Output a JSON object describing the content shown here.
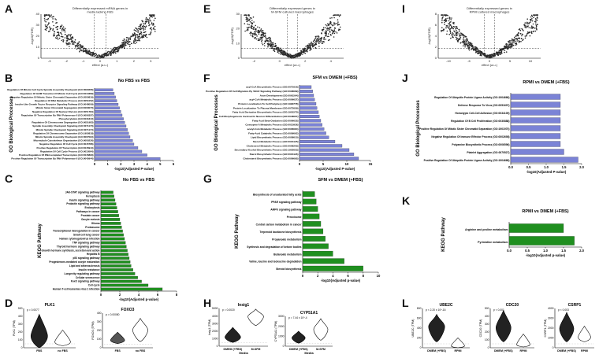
{
  "panel_labels": {
    "A": "A",
    "B": "B",
    "C": "C",
    "D": "D",
    "E": "E",
    "F": "F",
    "G": "G",
    "H": "H",
    "I": "I",
    "J": "J",
    "K": "K",
    "L": "L"
  },
  "volcano": [
    {
      "title_lines": [
        "Differentially expressed mRNA genes in",
        "media lacking FBS"
      ],
      "xlabel": "effect (a.u.)",
      "ylabel": "-log10(FDR)",
      "xticks": [
        "-3",
        "-2",
        "-1",
        "0",
        "1",
        "2",
        "3"
      ],
      "yticks": [
        "0",
        "10",
        "20",
        "30",
        "40"
      ]
    },
    {
      "title_lines": [
        "Differentially expressed genes in",
        "M-SFM cultured macrophages"
      ],
      "xlabel": "effect (a.u.)",
      "ylabel": "-log10(FDR)",
      "xticks": [
        "-2",
        "0",
        "2",
        "4"
      ],
      "yticks": [
        "0",
        "10",
        "20",
        "30"
      ]
    },
    {
      "title_lines": [
        "Differentially expressed genes in",
        "RPMI cultured macrophages"
      ],
      "xlabel": "effect (a.u.)",
      "ylabel": "-log10(FDR)",
      "xticks": [
        "-10",
        "-5",
        "0",
        "5",
        "10"
      ],
      "yticks": [
        "0",
        "2",
        "4",
        "6",
        "8"
      ]
    }
  ],
  "chart_data": [
    {
      "id": "B",
      "type": "bar",
      "orientation": "horizontal",
      "title": "No FBS vs FBS",
      "ylabel": "GO Biological Processes",
      "xlabel": "-log10(Adjusted P-value)",
      "color": "#7b83d6",
      "xlim": [
        0,
        6
      ],
      "xticks": [
        "0",
        "1",
        "2",
        "3",
        "4",
        "5",
        "6"
      ],
      "categories": [
        "Regulation Of Mitotic Cell Cycle Spindle Assembly Checkpoint (GO:0090266)",
        "Regulation Of G2/M Transition Of Mitotic Cell Cycle (GO:0010389)",
        "Negative Regulation Of Mitotic Sister Chromatid Separation (GO:2000816)",
        "Regulation Of DNA Metabolic Process (GO:0051052)",
        "Insulin-Like Growth Factor Receptor Signaling Pathway (GO:0048009)",
        "Mitotic Sister Chromatid Segregation (GO:0000070)",
        "Negative Regulation Of Nuclear Division (GO:0051784)",
        "Regulation Of Transcription By RNA Polymerase II (GO:0006357)",
        "Phosphorylation (GO:0016310)",
        "Regulation Of Chromosome Segregation (GO:0051983)",
        "Spindle Assembly Checkpoint Signaling (GO:0071173)",
        "Mitotic Spindle Checkpoint Signaling (GO:0071174)",
        "Regulation Of Chromosome Separation (GO:1905818)",
        "Mitotic Spindle Assembly Checkpoint (GO:0007094)",
        "Microtubule Cytoskeleton Organization (GO:0000226)",
        "Negative Regulation Of Cell Cycle (GO:0045786)",
        "Positive Regulation Of Transcription (GO:0045944)",
        "Regulation Of Cell Cycle Process (GO:0010564)",
        "Positive Regulation Of DNA-templated Transcription (GO:0045893)",
        "Positive Regulation Of Transcription By RNA Polymerase II (GO:0045944)"
      ],
      "values": [
        1.4,
        1.5,
        1.6,
        1.7,
        1.8,
        1.9,
        2.0,
        2.1,
        2.2,
        2.3,
        2.4,
        2.5,
        2.6,
        2.7,
        2.9,
        3.0,
        3.3,
        3.6,
        4.0,
        5.0
      ]
    },
    {
      "id": "C",
      "type": "bar",
      "orientation": "horizontal",
      "title": "No FBS vs FBS",
      "ylabel": "KEGG Pathway",
      "xlabel": "-log10(Adjusted p-value)",
      "color": "#1f8f1f",
      "xlim": [
        0,
        8
      ],
      "xticks": [
        "0",
        "2",
        "4",
        "6",
        "8"
      ],
      "categories": [
        "JAK-STAT signaling pathway",
        "Ferroptosis",
        "Insulin signaling pathway",
        "Prolactin signaling pathway",
        "Endocytosis",
        "Pathways in cancer",
        "Prostate cancer",
        "Oocyte meiosis",
        "Glioma",
        "Proteasome",
        "Transcriptional misregulation in cancer",
        "Small cell lung cancer",
        "Human cytomegalovirus infection",
        "TNF signaling pathway",
        "Thyroid hormone signaling pathway",
        "Growth hormone synthesis, secretion and action",
        "Hepatitis B",
        "p53 signaling pathway",
        "Progesterone-mediated oocyte maturation",
        "Lipid and atherosclerosis",
        "Insulin resistance",
        "Longevity regulating pathway",
        "Cellular senescence",
        "FoxO signaling pathway",
        "Cell cycle",
        "Human T-cell leukemia virus 1 infection"
      ],
      "values": [
        1.3,
        1.4,
        1.5,
        1.6,
        1.7,
        1.8,
        1.9,
        2.0,
        2.1,
        2.2,
        2.3,
        2.4,
        2.5,
        2.6,
        2.7,
        2.8,
        2.9,
        3.0,
        3.1,
        3.2,
        3.4,
        3.6,
        3.9,
        4.3,
        5.0,
        6.5
      ]
    },
    {
      "id": "F",
      "type": "bar",
      "orientation": "horizontal",
      "title": "SFM vs DMEM (+FBS)",
      "ylabel": "GO Biological Processes",
      "xlabel": "-log10(Adjusted P-value)",
      "color": "#7b83d6",
      "xlim": [
        0,
        15
      ],
      "xticks": [
        "0",
        "5",
        "10",
        "15"
      ],
      "categories": [
        "acyl-CoA Biosynthetic Process (GO:0071616)",
        "Positive Regulation Of Cell Migration By VEGF Signaling Pathway (GO:0038089)",
        "Axon Development (GO:0061564)",
        "acyl-CoA Metabolic Process (GO:0006637)",
        "Protein Localization To Cell Periphery (GO:1990778)",
        "Protein Localization To Plasma Membrane (GO:0072659)",
        "Fatty Acid Derivative Biosynthetic Process (GO:1901570)",
        "Cell Morphogenesis Involved In Neuron Differentiation (GO:0048667)",
        "Fatty Acid Beta-Oxidation (GO:0006635)",
        "Coenzyme A Metabolic Process (GO:0015936)",
        "acetyl-CoA Metabolic Process (GO:0006084)",
        "Fatty Acid Catabolic Process (GO:0009062)",
        "Lipid Biosynthetic Process (GO:0008610)",
        "Sterol Metabolic Process (GO:0016125)",
        "Cholesterol Metabolic Process (GO:0008203)",
        "Secondary Alcohol Biosynthetic Process (GO:1902653)",
        "Sterol Biosynthetic Process (GO:0016126)",
        "Cholesterol Biosynthetic Process (GO:0006695)"
      ],
      "values": [
        2.5,
        2.8,
        3.0,
        3.2,
        3.5,
        3.7,
        4.0,
        4.2,
        4.5,
        4.8,
        5.2,
        5.6,
        6.2,
        7.5,
        9.0,
        10.5,
        11.5,
        12.5
      ]
    },
    {
      "id": "G",
      "type": "bar",
      "orientation": "horizontal",
      "title": "SFM vs DMEM (+FBS)",
      "ylabel": "KEGG Pathway",
      "xlabel": "-log10(Adjusted p-value)",
      "color": "#1f8f1f",
      "xlim": [
        0,
        10
      ],
      "xticks": [
        "0",
        "2",
        "4",
        "6",
        "8",
        "10"
      ],
      "categories": [
        "Biosynthesis of unsaturated fatty acids",
        "PPAR signaling pathway",
        "AMPK signaling pathway",
        "Peroxisome",
        "Central carbon metabolism in cancer",
        "Terpenoid backbone biosynthesis",
        "Propanoate metabolism",
        "Synthesis and degradation of ketone bodies",
        "Butanoate metabolism",
        "Valine, leucine and isoleucine degradation",
        "Steroid biosynthesis"
      ],
      "values": [
        1.6,
        1.8,
        2.0,
        2.2,
        2.4,
        2.7,
        3.0,
        3.4,
        4.0,
        5.5,
        8.0
      ]
    },
    {
      "id": "J",
      "type": "bar",
      "orientation": "horizontal",
      "title": "RPMI vs DMEM (+FBS)",
      "ylabel": "GO Biological Processes",
      "xlabel": "-log10(Adjusted P-value)",
      "color": "#7b83d6",
      "xlim": [
        0,
        2.0
      ],
      "xticks": [
        "0.0",
        "0.5",
        "1.0",
        "1.5",
        "2.0"
      ],
      "categories": [
        "Regulation Of Ubiquitin Protein Ligase Activity (GO:1904666)",
        "Defense Response To Virus (GO:0051607)",
        "Homotypic Cell-Cell Adhesion (GO:0034109)",
        "Regulation Of B Cell Proliferation (GO:0030888)",
        "Positive Regulation Of Mitotic Sister Chromatid Separation (GO:1901970)",
        "Negative Regulation Of Immune Effector Process (GO:0002698)",
        "Polyamine Biosynthetic Process (GO:0006596)",
        "Platelet Aggregation (GO:0070527)",
        "Positive Regulation Of Ubiquitin Protein Ligase Activity (GO:1904668)"
      ],
      "values": [
        1.4,
        1.4,
        1.4,
        1.4,
        1.4,
        1.4,
        1.4,
        1.5,
        1.9
      ]
    },
    {
      "id": "K",
      "type": "bar",
      "orientation": "horizontal",
      "title": "RPMI vs DMEM (+FBS)",
      "ylabel": "KEGG Pathway",
      "xlabel": "-log10(Adjusted p-value)",
      "color": "#1f8f1f",
      "xlim": [
        0,
        2.0
      ],
      "xticks": [
        "0.0",
        "0.5",
        "1.0",
        "1.5",
        "2.0"
      ],
      "categories": [
        "Arginine and proline metabolism",
        "Pyrimidine metabolism"
      ],
      "values": [
        1.5,
        1.8
      ]
    }
  ],
  "violins": [
    {
      "id": "D1",
      "title": "PLK1",
      "ylabel": "PLK1 (TPM)",
      "pval": "p = 0.0077",
      "yticks": [
        "0",
        "100",
        "200",
        "300",
        "400",
        "500"
      ],
      "groups": [
        "FBS",
        "no FBS"
      ],
      "fill": "#222222"
    },
    {
      "id": "D2",
      "title": "FOXO3",
      "ylabel": "FOXO3 (TPM)",
      "pval": "p = 0.00080",
      "yticks": [
        "0",
        "100",
        "200",
        "300",
        "400"
      ],
      "groups": [
        "FBS",
        "no FBS"
      ],
      "fill": "#555555"
    },
    {
      "id": "H1",
      "title": "Insig1",
      "ylabel": "Insig1 (TPM)",
      "pval": "p = 0.0020",
      "yticks": [
        "0",
        "1000",
        "2000",
        "3000",
        "4000",
        "5000"
      ],
      "groups": [
        "DMEM (+FBS)",
        "M-SFM"
      ],
      "xlabel": "Media",
      "fill": "#222222"
    },
    {
      "id": "H2",
      "title": "CYP51A1",
      "ylabel": "CYP51A1 (TPM)",
      "pval": "p = 7.44 x 10^-4",
      "yticks": [
        "0",
        "1000",
        "2000",
        "3000"
      ],
      "groups": [
        "DMEM (+FBS)",
        "M-SFM"
      ],
      "xlabel": "Media",
      "fill": "#222222"
    },
    {
      "id": "L1",
      "title": "UBE2C",
      "ylabel": "UBE2C (TPM)",
      "pval": "p < 2.20 x 10^-16",
      "yticks": [
        "0",
        "200",
        "400",
        "600",
        "800"
      ],
      "groups": [
        "DMEM (+FBS)",
        "RPMI"
      ],
      "fill": "#222222"
    },
    {
      "id": "L2",
      "title": "CDC20",
      "ylabel": "CDC20 (TPM)",
      "pval": "p < 0.001",
      "yticks": [
        "0",
        "100",
        "200",
        "300",
        "400",
        "500"
      ],
      "groups": [
        "DMEM (+FBS)",
        "RPMI"
      ],
      "fill": "#222222"
    },
    {
      "id": "L3",
      "title": "CSRP1",
      "ylabel": "CSRP1 (TPM)",
      "pval": "p < 0.003",
      "yticks": [
        "0",
        "1000",
        "2000",
        "3000",
        "4000"
      ],
      "groups": [
        "DMEM (+FBS)",
        "RPMI"
      ],
      "fill": "#222222"
    }
  ]
}
